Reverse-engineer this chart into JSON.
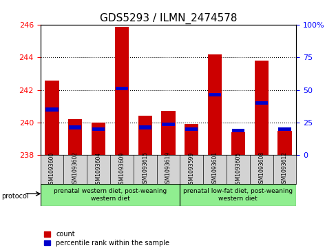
{
  "title": "GDS5293 / ILMN_2474578",
  "samples": [
    "GSM1093600",
    "GSM1093602",
    "GSM1093604",
    "GSM1093609",
    "GSM1093615",
    "GSM1093619",
    "GSM1093599",
    "GSM1093601",
    "GSM1093605",
    "GSM1093608",
    "GSM1093612"
  ],
  "red_values": [
    242.6,
    240.2,
    240.0,
    245.9,
    240.4,
    240.7,
    239.9,
    244.2,
    239.4,
    243.8,
    239.5
  ],
  "blue_values": [
    240.8,
    239.7,
    239.6,
    242.1,
    239.7,
    239.9,
    239.6,
    241.7,
    239.5,
    241.2,
    239.6
  ],
  "ymin": 238,
  "ymax": 246,
  "yticks_left": [
    238,
    240,
    242,
    244,
    246
  ],
  "yticks_right": [
    0,
    25,
    50,
    75,
    100
  ],
  "bar_color": "#cc0000",
  "blue_color": "#0000cc",
  "group1_label": "prenatal western diet, post-weaning\nwestern diet",
  "group2_label": "prenatal low-fat diet, post-weaning\nwestern diet",
  "group1_count": 6,
  "group2_count": 5,
  "legend_count": "count",
  "legend_pct": "percentile rank within the sample",
  "protocol_label": "protocol",
  "bg_plot": "#ffffff",
  "bg_xticklabels": "#d3d3d3",
  "bg_group1": "#90ee90",
  "bg_group2": "#90ee90",
  "title_fontsize": 11,
  "axis_label_fontsize": 8,
  "tick_fontsize": 8
}
